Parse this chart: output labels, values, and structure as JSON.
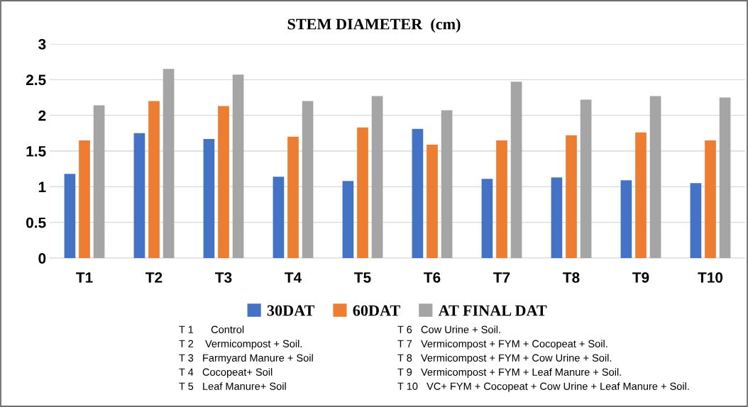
{
  "chart_data": {
    "type": "bar",
    "title": "STEM DIAMETER  (cm)",
    "categories": [
      "T1",
      "T2",
      "T3",
      "T4",
      "T5",
      "T6",
      "T7",
      "T8",
      "T9",
      "T10"
    ],
    "series": [
      {
        "name": "30DAT",
        "color": "#4472c4",
        "values": [
          1.18,
          1.75,
          1.67,
          1.14,
          1.08,
          1.81,
          1.11,
          1.13,
          1.09,
          1.05
        ]
      },
      {
        "name": "60DAT",
        "color": "#ed7d31",
        "values": [
          1.65,
          2.2,
          2.13,
          1.7,
          1.83,
          1.59,
          1.65,
          1.72,
          1.76,
          1.65
        ]
      },
      {
        "name": "AT FINAL DAT",
        "color": "#a5a5a5",
        "values": [
          2.14,
          2.65,
          2.57,
          2.2,
          2.27,
          2.07,
          2.47,
          2.22,
          2.27,
          2.25
        ]
      }
    ],
    "ylim": [
      0,
      3
    ],
    "yticks": [
      0,
      0.5,
      1,
      1.5,
      2,
      2.5,
      3
    ],
    "grid": "y",
    "legend": "bottom",
    "annotations": [
      "T 1      Control",
      "T 2    Vermicompost + Soil.",
      "T 3   Farmyard Manure + Soil",
      "T 4   Cocopeat+ Soil",
      "T 5   Leaf Manure+ Soil",
      "T 6   Cow Urine + Soil.",
      "T 7   Vermicompost + FYM + Cocopeat + Soil.",
      "T 8   Vermicompost + FYM + Cow Urine + Soil.",
      "T 9   Vermicompost + FYM + Leaf Manure + Soil.",
      "T 10   VC+ FYM + Cocopeat + Cow Urine + Leaf Manure + Soil."
    ]
  }
}
